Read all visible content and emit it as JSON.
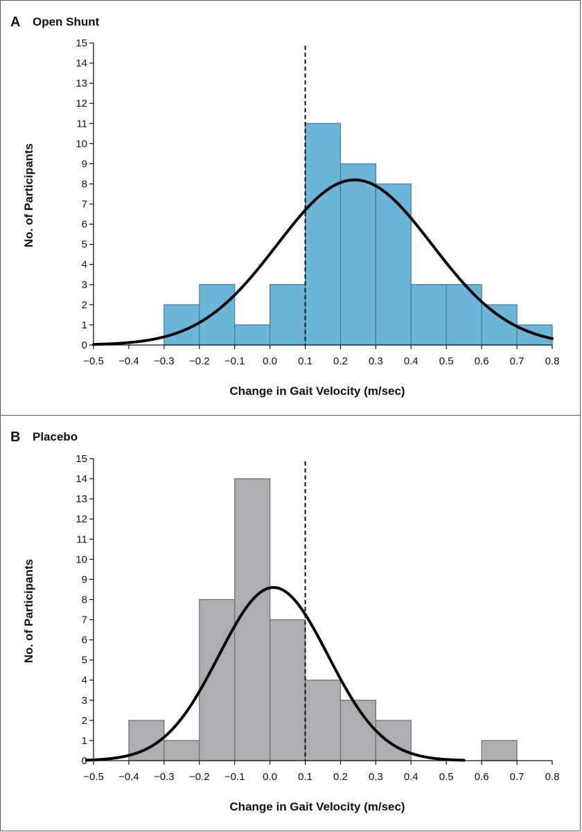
{
  "chart_data": [
    {
      "type": "bar",
      "panel_letter": "A",
      "title": "Open Shunt",
      "xlabel": "Change in Gait Velocity (m/sec)",
      "ylabel": "No. of Participants",
      "xlim": [
        -0.5,
        0.8
      ],
      "ylim": [
        0,
        15
      ],
      "x_ticks": [
        -0.5,
        -0.4,
        -0.3,
        -0.2,
        -0.1,
        0.0,
        0.1,
        0.2,
        0.3,
        0.4,
        0.5,
        0.6,
        0.7,
        0.8
      ],
      "x_tick_labels": [
        "−0.5",
        "−0.4",
        "−0.3",
        "−0.2",
        "−0.1",
        "0.0",
        "0.1",
        "0.2",
        "0.3",
        "0.4",
        "0.5",
        "0.6",
        "0.7",
        "0.8"
      ],
      "y_ticks": [
        0,
        1,
        2,
        3,
        4,
        5,
        6,
        7,
        8,
        9,
        10,
        11,
        12,
        13,
        14,
        15
      ],
      "bins": [
        {
          "start": -0.3,
          "end": -0.2,
          "count": 2
        },
        {
          "start": -0.2,
          "end": -0.1,
          "count": 3
        },
        {
          "start": -0.1,
          "end": 0.0,
          "count": 1
        },
        {
          "start": 0.0,
          "end": 0.1,
          "count": 3
        },
        {
          "start": 0.1,
          "end": 0.2,
          "count": 11
        },
        {
          "start": 0.2,
          "end": 0.3,
          "count": 9
        },
        {
          "start": 0.3,
          "end": 0.4,
          "count": 8
        },
        {
          "start": 0.4,
          "end": 0.5,
          "count": 3
        },
        {
          "start": 0.5,
          "end": 0.6,
          "count": 3
        },
        {
          "start": 0.6,
          "end": 0.7,
          "count": 2
        },
        {
          "start": 0.7,
          "end": 0.8,
          "count": 1
        }
      ],
      "reference_line_x": 0.1,
      "normal_curve": {
        "mean": 0.24,
        "sd": 0.22,
        "peak": 8.2,
        "x_range": [
          -0.5,
          0.8
        ]
      },
      "bar_color": "#6bb5d9",
      "bar_edge_color": "#3a7fa6"
    },
    {
      "type": "bar",
      "panel_letter": "B",
      "title": "Placebo",
      "xlabel": "Change in Gait Velocity (m/sec)",
      "ylabel": "No. of Participants",
      "xlim": [
        -0.5,
        0.8
      ],
      "ylim": [
        0,
        15
      ],
      "x_ticks": [
        -0.5,
        -0.4,
        -0.3,
        -0.2,
        -0.1,
        0.0,
        0.1,
        0.2,
        0.3,
        0.4,
        0.5,
        0.6,
        0.7,
        0.8
      ],
      "x_tick_labels": [
        "−0.5",
        "−0.4",
        "−0.3",
        "−0.2",
        "−0.1",
        "0.0",
        "0.1",
        "0.2",
        "0.3",
        "0.4",
        "0.5",
        "0.6",
        "0.7",
        "0.8"
      ],
      "y_ticks": [
        0,
        1,
        2,
        3,
        4,
        5,
        6,
        7,
        8,
        9,
        10,
        11,
        12,
        13,
        14,
        15
      ],
      "bins": [
        {
          "start": -0.4,
          "end": -0.3,
          "count": 2
        },
        {
          "start": -0.3,
          "end": -0.2,
          "count": 1
        },
        {
          "start": -0.2,
          "end": -0.1,
          "count": 8
        },
        {
          "start": -0.1,
          "end": 0.0,
          "count": 14
        },
        {
          "start": 0.0,
          "end": 0.1,
          "count": 7
        },
        {
          "start": 0.1,
          "end": 0.2,
          "count": 4
        },
        {
          "start": 0.2,
          "end": 0.3,
          "count": 3
        },
        {
          "start": 0.3,
          "end": 0.4,
          "count": 2
        },
        {
          "start": 0.6,
          "end": 0.7,
          "count": 1
        }
      ],
      "reference_line_x": 0.1,
      "normal_curve": {
        "mean": 0.01,
        "sd": 0.155,
        "peak": 8.6,
        "x_range": [
          -0.52,
          0.55
        ]
      },
      "bar_color": "#acaeb2",
      "bar_edge_color": "#6b6d70"
    }
  ]
}
